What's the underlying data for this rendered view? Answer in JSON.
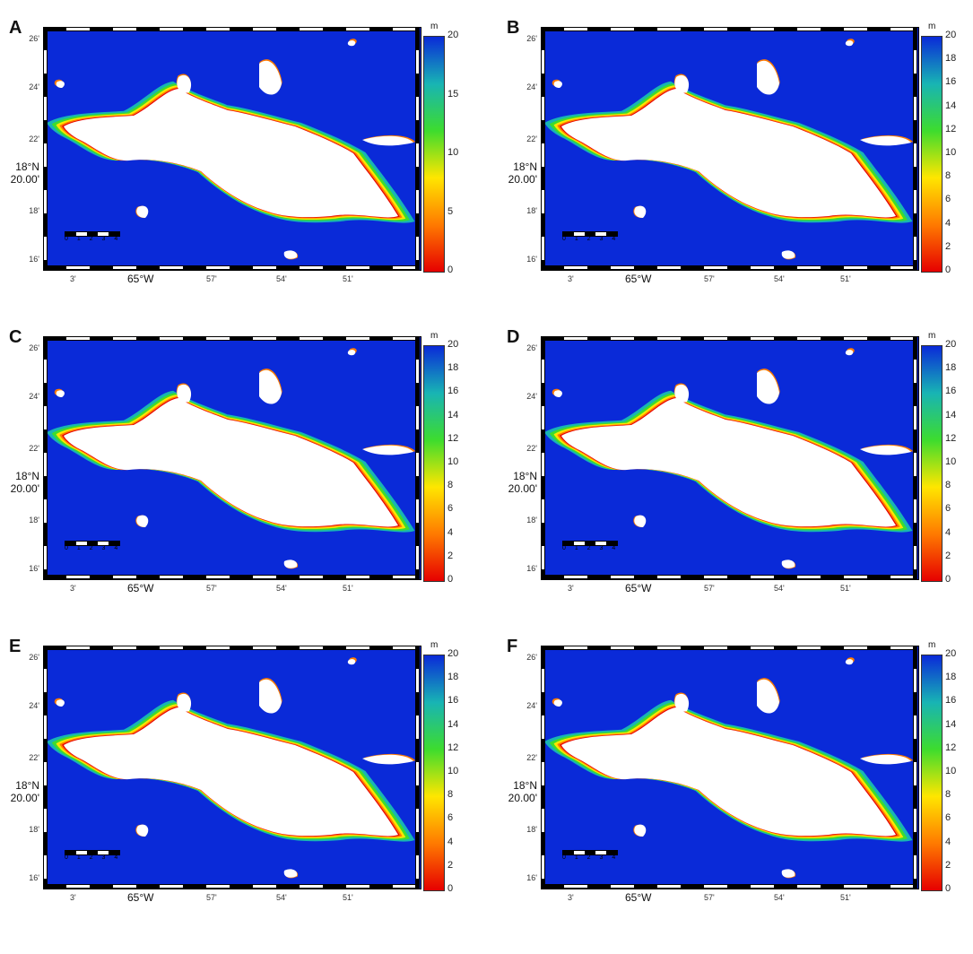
{
  "colorbar": {
    "unit": "m",
    "gradient": [
      "#e60000",
      "#ff7a00",
      "#ffe600",
      "#3ddc2e",
      "#18b4b4",
      "#0a2ad8"
    ]
  },
  "map_labels": {
    "lat_ticks": [
      "26'",
      "24'",
      "22'",
      "18°N",
      "20.00'",
      "18'",
      "16'"
    ],
    "lon_ticks": [
      "3'",
      "65°W",
      "57'",
      "54'",
      "51'"
    ],
    "scale_numbers": "0 1 2 3 4"
  },
  "panels": [
    {
      "label": "A",
      "ticks": [
        "20",
        "15",
        "10",
        "5",
        "0"
      ]
    },
    {
      "label": "B",
      "ticks": [
        "20",
        "18",
        "16",
        "14",
        "12",
        "10",
        "8",
        "6",
        "4",
        "2",
        "0"
      ]
    },
    {
      "label": "C",
      "ticks": [
        "20",
        "18",
        "16",
        "14",
        "12",
        "10",
        "8",
        "6",
        "4",
        "2",
        "0"
      ]
    },
    {
      "label": "D",
      "ticks": [
        "20",
        "18",
        "16",
        "14",
        "12",
        "10",
        "8",
        "6",
        "4",
        "2",
        "0"
      ]
    },
    {
      "label": "E",
      "ticks": [
        "20",
        "18",
        "16",
        "14",
        "12",
        "10",
        "8",
        "6",
        "4",
        "2",
        "0"
      ]
    },
    {
      "label": "F",
      "ticks": [
        "20",
        "18",
        "16",
        "14",
        "12",
        "10",
        "8",
        "6",
        "4",
        "2",
        "0"
      ]
    }
  ]
}
